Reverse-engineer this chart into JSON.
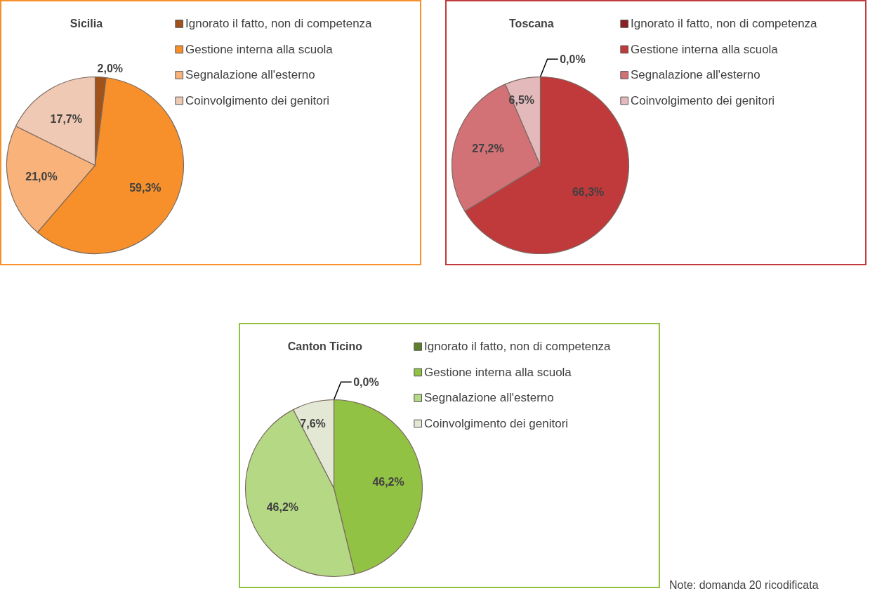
{
  "chart_data": [
    {
      "type": "pie",
      "title": "Sicilia",
      "legend": "right",
      "categories": [
        "Ignorato il fatto, non di competenza",
        "Gestione interna alla scuola",
        "Segnalazione all'esterno",
        "Coinvolgimento dei genitori"
      ],
      "values": [
        2.0,
        59.3,
        21.0,
        17.7
      ],
      "value_labels": [
        "2,0%",
        "59,3%",
        "21,0%",
        "17,7%"
      ],
      "colors": [
        "#a0521a",
        "#f7902a",
        "#f9b37a",
        "#f0c9b4"
      ]
    },
    {
      "type": "pie",
      "title": "Toscana",
      "legend": "right",
      "categories": [
        "Ignorato il fatto, non  di competenza",
        "Gestione interna alla scuola",
        "Segnalazione all'esterno",
        "Coinvolgimento dei genitori"
      ],
      "values": [
        0.0,
        66.3,
        27.2,
        6.5
      ],
      "value_labels": [
        "0,0%",
        "66,3%",
        "27,2%",
        "6,5%"
      ],
      "colors": [
        "#8b2020",
        "#c0393b",
        "#d27176",
        "#e3b9bb"
      ]
    },
    {
      "type": "pie",
      "title": "Canton Ticino",
      "legend": "right",
      "categories": [
        "Ignorato il fatto, non di competenza",
        "Gestione interna alla scuola",
        "Segnalazione all'esterno",
        "Coinvolgimento dei genitori"
      ],
      "values": [
        0.0,
        46.2,
        46.2,
        7.6
      ],
      "value_labels": [
        "0,0%",
        "46,2%",
        "46,2%",
        "7,6%"
      ],
      "colors": [
        "#5f7f2a",
        "#92c244",
        "#b5d885",
        "#e2e8d3"
      ],
      "annotations": [
        "Note: domanda 20 ricodificata"
      ]
    }
  ]
}
